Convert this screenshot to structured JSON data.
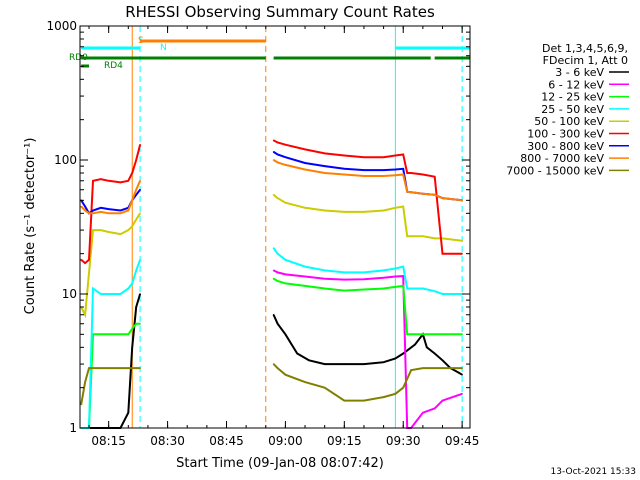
{
  "chart_data": {
    "type": "line",
    "title": "RHESSI Observing Summary Count Rates",
    "xlabel": "Start Time (09-Jan-08 08:07:42)",
    "ylabel": "Count Rate (s⁻¹ detector⁻¹)",
    "y_scale": "log",
    "ylim": [
      1,
      1000
    ],
    "xlim": [
      "08:07:42",
      "09:47:00"
    ],
    "x_ticks": [
      "08:15",
      "08:30",
      "08:45",
      "09:00",
      "09:15",
      "09:30",
      "09:45"
    ],
    "y_ticks": [
      "1",
      "10",
      "100",
      "1000"
    ],
    "grid": false,
    "timestamp": "13-Oct-2021 15:33",
    "legend": {
      "position": "right",
      "header": [
        "Det 1,3,4,5,6,9,",
        "FDecim 1, Att 0"
      ]
    },
    "series": [
      {
        "name": "3 - 6 keV",
        "color": "#000000",
        "x": [
          "08:08",
          "08:10",
          "08:12",
          "08:14",
          "08:16",
          "08:18",
          "08:20",
          "08:21",
          "08:22",
          "08:23",
          "08:57",
          "08:58",
          "09:00",
          "09:03",
          "09:06",
          "09:10",
          "09:15",
          "09:20",
          "09:25",
          "09:28",
          "09:30",
          "09:33",
          "09:35",
          "09:36",
          "09:38",
          "09:40",
          "09:42",
          "09:44",
          "09:45"
        ],
        "y": [
          1,
          1,
          1,
          1,
          1,
          1,
          1.3,
          4,
          8,
          10,
          7,
          6,
          5,
          3.6,
          3.2,
          3.0,
          3.0,
          3.0,
          3.1,
          3.3,
          3.6,
          4.2,
          5,
          4,
          3.6,
          3.2,
          2.8,
          2.6,
          2.5
        ]
      },
      {
        "name": "6 - 12 keV",
        "color": "#ff00ff",
        "x": [
          "08:57",
          "08:58",
          "09:00",
          "09:05",
          "09:10",
          "09:15",
          "09:20",
          "09:25",
          "09:28",
          "09:30",
          "09:31",
          "09:32",
          "09:35",
          "09:38",
          "09:40",
          "09:45"
        ],
        "y": [
          15,
          14.5,
          14,
          13.5,
          13.0,
          12.8,
          12.9,
          13.2,
          13.5,
          13.6,
          1,
          1,
          1.3,
          1.4,
          1.6,
          1.8
        ]
      },
      {
        "name": "12 - 25 keV",
        "color": "#00ff00",
        "x": [
          "08:08",
          "08:10",
          "08:11",
          "08:13",
          "08:15",
          "08:18",
          "08:20",
          "08:21",
          "08:22",
          "08:23",
          "08:57",
          "08:58",
          "09:00",
          "09:05",
          "09:10",
          "09:15",
          "09:20",
          "09:25",
          "09:28",
          "09:30",
          "09:31",
          "09:35",
          "09:38",
          "09:40",
          "09:45"
        ],
        "y": [
          1,
          1,
          5,
          5,
          5,
          5,
          5,
          5.5,
          6,
          6,
          13,
          12.5,
          12,
          11.5,
          11,
          10.6,
          10.8,
          11,
          11.3,
          11.5,
          5,
          5,
          5,
          5,
          5
        ]
      },
      {
        "name": "25 - 50 keV",
        "color": "#00ffff",
        "x": [
          "08:08",
          "08:10",
          "08:11",
          "08:13",
          "08:15",
          "08:18",
          "08:20",
          "08:21",
          "08:22",
          "08:23",
          "08:57",
          "08:58",
          "09:00",
          "09:05",
          "09:10",
          "09:15",
          "09:20",
          "09:25",
          "09:28",
          "09:30",
          "09:31",
          "09:35",
          "09:38",
          "09:40",
          "09:45"
        ],
        "y": [
          1,
          1,
          11,
          10,
          10,
          10,
          11,
          12,
          15,
          18,
          22,
          20,
          18,
          16,
          15,
          14.5,
          14.5,
          15,
          15.5,
          16,
          11,
          11,
          10.5,
          10,
          10
        ]
      },
      {
        "name": "50 - 100 keV",
        "color": "#cccc00",
        "x": [
          "08:08",
          "08:09",
          "08:11",
          "08:13",
          "08:15",
          "08:18",
          "08:20",
          "08:21",
          "08:22",
          "08:23",
          "08:57",
          "08:58",
          "09:00",
          "09:05",
          "09:10",
          "09:15",
          "09:20",
          "09:25",
          "09:28",
          "09:30",
          "09:31",
          "09:35",
          "09:38",
          "09:40",
          "09:45"
        ],
        "y": [
          8,
          7,
          30,
          30,
          29,
          28,
          30,
          32,
          36,
          40,
          55,
          52,
          48,
          44,
          42,
          41,
          41,
          42,
          44,
          45,
          27,
          27,
          26,
          26,
          25
        ]
      },
      {
        "name": "100 - 300 keV",
        "color": "#ff0000",
        "x": [
          "08:08",
          "08:09",
          "08:10",
          "08:11",
          "08:13",
          "08:15",
          "08:18",
          "08:20",
          "08:21",
          "08:22",
          "08:23",
          "08:57",
          "08:58",
          "09:00",
          "09:05",
          "09:10",
          "09:15",
          "09:20",
          "09:25",
          "09:28",
          "09:30",
          "09:31",
          "09:32",
          "09:35",
          "09:38",
          "09:40",
          "09:45"
        ],
        "y": [
          18,
          17,
          18,
          70,
          72,
          70,
          68,
          70,
          80,
          100,
          130,
          140,
          135,
          130,
          120,
          112,
          108,
          105,
          105,
          108,
          110,
          80,
          80,
          78,
          75,
          20,
          20
        ]
      },
      {
        "name": "300 - 800 keV",
        "color": "#0000ff",
        "x": [
          "08:08",
          "08:09",
          "08:10",
          "08:11",
          "08:13",
          "08:15",
          "08:18",
          "08:20",
          "08:21",
          "08:22",
          "08:23",
          "08:57",
          "08:58",
          "09:00",
          "09:05",
          "09:10",
          "09:15",
          "09:20",
          "09:25",
          "09:28",
          "09:30",
          "09:31",
          "09:35",
          "09:38",
          "09:40",
          "09:45"
        ],
        "y": [
          50,
          45,
          40,
          42,
          44,
          43,
          42,
          44,
          50,
          55,
          60,
          115,
          110,
          105,
          95,
          90,
          86,
          84,
          84,
          85,
          86,
          58,
          56,
          55,
          52,
          50
        ]
      },
      {
        "name": "800 - 7000 keV",
        "color": "#ff8000",
        "x": [
          "08:08",
          "08:09",
          "08:10",
          "08:11",
          "08:13",
          "08:15",
          "08:18",
          "08:20",
          "08:21",
          "08:22",
          "08:23",
          "08:57",
          "08:58",
          "09:00",
          "09:05",
          "09:10",
          "09:15",
          "09:20",
          "09:25",
          "09:28",
          "09:30",
          "09:31",
          "09:35",
          "09:38",
          "09:40",
          "09:45"
        ],
        "y": [
          45,
          42,
          40,
          40,
          41,
          40,
          40,
          42,
          50,
          60,
          70,
          100,
          96,
          92,
          85,
          80,
          78,
          76,
          76,
          77,
          78,
          58,
          56,
          55,
          52,
          50
        ]
      },
      {
        "name": "7000 - 15000 keV",
        "color": "#808000",
        "x": [
          "08:08",
          "08:09",
          "08:10",
          "08:12",
          "08:14",
          "08:16",
          "08:18",
          "08:20",
          "08:22",
          "08:23",
          "08:57",
          "08:58",
          "09:00",
          "09:05",
          "09:10",
          "09:15",
          "09:20",
          "09:25",
          "09:28",
          "09:30",
          "09:32",
          "09:35",
          "09:38",
          "09:40",
          "09:45"
        ],
        "y": [
          1.5,
          2.2,
          2.8,
          2.8,
          2.8,
          2.8,
          2.8,
          2.8,
          2.8,
          2.8,
          3,
          2.8,
          2.5,
          2.2,
          2.0,
          1.6,
          1.6,
          1.7,
          1.8,
          2,
          2.7,
          2.8,
          2.8,
          2.8,
          2.8
        ]
      }
    ],
    "flags": [
      {
        "name": "S",
        "color": "#ff8000",
        "start": "08:23",
        "end": "08:55"
      },
      {
        "name": "N",
        "color": "#00ffff",
        "start": "08:08",
        "end": "08:23"
      },
      {
        "name": "N",
        "color": "#00ffff",
        "start": "09:28",
        "end": "09:47"
      },
      {
        "name": "RD0",
        "color": "#008000",
        "start": "08:08",
        "end": "08:55"
      },
      {
        "name": "RD0",
        "color": "#008000",
        "start": "08:57",
        "end": "09:37"
      },
      {
        "name": "RD0",
        "color": "#008000",
        "start": "09:38",
        "end": "09:47"
      },
      {
        "name": "RD4",
        "color": "#008000",
        "start": "08:08",
        "end": "08:10"
      }
    ],
    "flag_labels": [
      {
        "text": "S",
        "color": "#ff8000"
      },
      {
        "text": "N",
        "color": "#00ffff"
      },
      {
        "text": "RD0",
        "color": "#008000"
      },
      {
        "text": "RD4",
        "color": "#008000"
      }
    ],
    "vertical_markers": [
      {
        "time": "08:21",
        "color": "#ff8000",
        "style": "solid"
      },
      {
        "time": "08:23",
        "color": "#00ffff",
        "style": "dashed"
      },
      {
        "time": "08:55",
        "color": "#ff8000",
        "style": "dashed"
      },
      {
        "time": "09:28",
        "color": "#00ffff",
        "style": "solid"
      },
      {
        "time": "09:45",
        "color": "#00ffff",
        "style": "dashed"
      }
    ]
  }
}
